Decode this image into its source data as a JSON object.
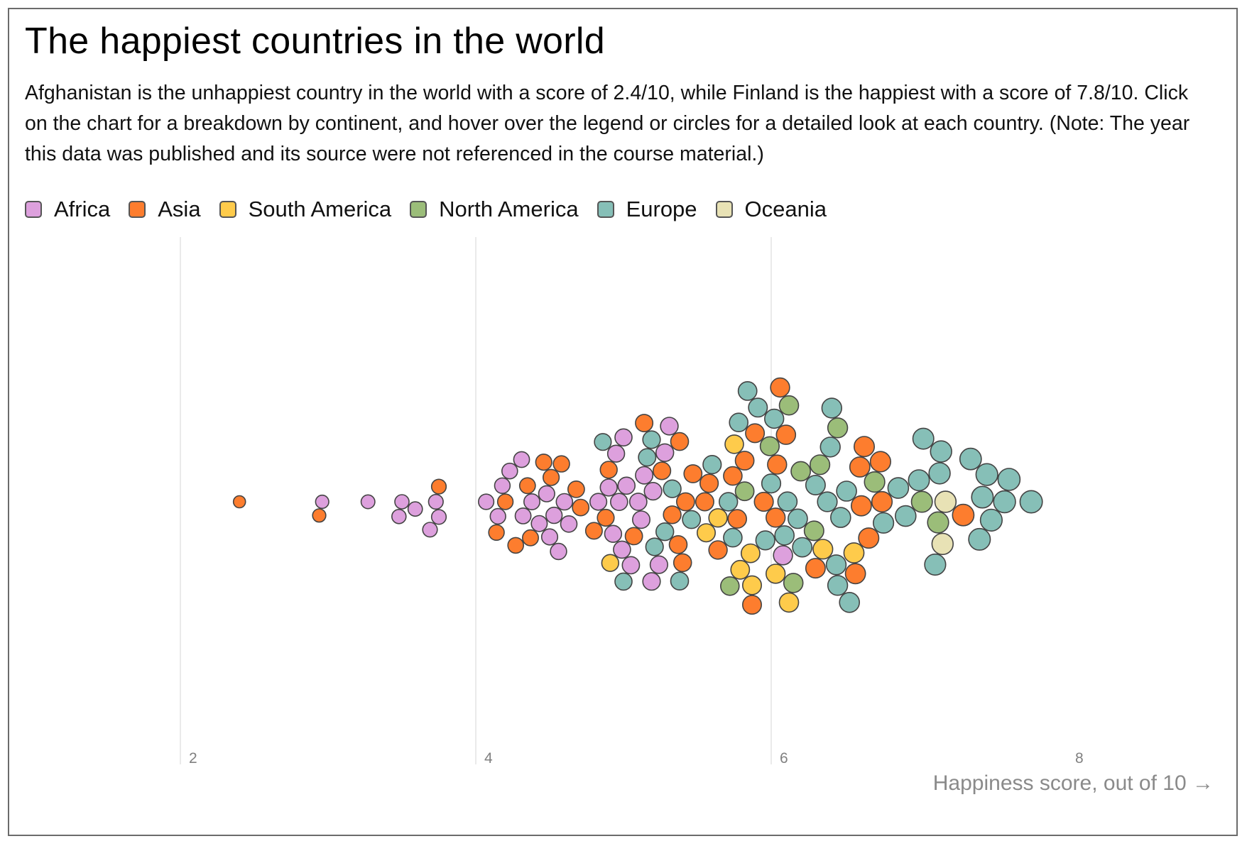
{
  "title": "The happiest countries in the world",
  "subtitle": "Afghanistan is the unhappiest country in the world with a score of 2.4/10, while Finland is the happiest with a score of 7.8/10. Click on the chart for a breakdown by continent, and hover over the legend or circles for a detailed look at each country. (Note: The year this data was published and its source were not referenced in the course material.)",
  "legend": [
    {
      "label": "Africa",
      "color": "#dda0dd"
    },
    {
      "label": "Asia",
      "color": "#fd7d2e"
    },
    {
      "label": "South America",
      "color": "#fecb4b"
    },
    {
      "label": "North America",
      "color": "#9bbd79"
    },
    {
      "label": "Europe",
      "color": "#86bfb7"
    },
    {
      "label": "Oceania",
      "color": "#e8e2b5"
    }
  ],
  "chart_data": {
    "type": "scatter",
    "subtype": "beeswarm",
    "x_label": "Happiness score, out of 10",
    "x_ticks": [
      2,
      4,
      6,
      8
    ],
    "x_range": [
      2,
      8
    ],
    "grid": "vertical gridlines",
    "series": [
      {
        "name": "Africa",
        "color": "#dda0dd",
        "values": [
          2.96,
          3.27,
          3.48,
          3.5,
          3.59,
          3.69,
          3.73,
          3.75,
          4.07,
          4.15,
          4.18,
          4.23,
          4.31,
          4.32,
          4.38,
          4.43,
          4.48,
          4.5,
          4.53,
          4.56,
          4.6,
          4.63,
          4.83,
          4.9,
          4.93,
          4.95,
          4.97,
          4.99,
          5.0,
          5.02,
          5.05,
          5.1,
          5.12,
          5.14,
          5.19,
          5.2,
          5.24,
          5.28,
          5.31,
          6.08
        ]
      },
      {
        "name": "Asia",
        "color": "#fd7d2e",
        "values": [
          2.4,
          2.94,
          3.75,
          4.14,
          4.2,
          4.27,
          4.35,
          4.37,
          4.46,
          4.51,
          4.58,
          4.68,
          4.71,
          4.8,
          4.88,
          4.9,
          5.07,
          5.14,
          5.26,
          5.33,
          5.37,
          5.38,
          5.4,
          5.42,
          5.47,
          5.55,
          5.58,
          5.64,
          5.74,
          5.77,
          5.82,
          5.87,
          5.89,
          5.95,
          6.03,
          6.04,
          6.06,
          6.1,
          6.3,
          6.57,
          6.6,
          6.61,
          6.63,
          6.66,
          6.74,
          6.75,
          7.3
        ]
      },
      {
        "name": "South America",
        "color": "#fecb4b",
        "values": [
          4.91,
          5.56,
          5.64,
          5.75,
          5.79,
          5.86,
          5.87,
          6.03,
          6.12,
          6.35,
          6.56
        ]
      },
      {
        "name": "North America",
        "color": "#9bbd79",
        "values": [
          5.72,
          5.82,
          5.99,
          6.12,
          6.15,
          6.2,
          6.29,
          6.33,
          6.45,
          6.7,
          7.02,
          7.13
        ]
      },
      {
        "name": "Europe",
        "color": "#86bfb7",
        "values": [
          4.86,
          5.0,
          5.16,
          5.19,
          5.21,
          5.28,
          5.33,
          5.38,
          5.46,
          5.6,
          5.71,
          5.74,
          5.78,
          5.84,
          5.91,
          5.96,
          6.0,
          6.02,
          6.09,
          6.11,
          6.18,
          6.21,
          6.3,
          6.38,
          6.4,
          6.41,
          6.44,
          6.45,
          6.47,
          6.51,
          6.53,
          6.76,
          6.86,
          6.91,
          7.0,
          7.03,
          7.11,
          7.14,
          7.15,
          7.35,
          7.41,
          7.43,
          7.46,
          7.49,
          7.58,
          7.61,
          7.76
        ]
      },
      {
        "name": "Oceania",
        "color": "#e8e2b5",
        "values": [
          7.16,
          7.18
        ]
      }
    ]
  }
}
